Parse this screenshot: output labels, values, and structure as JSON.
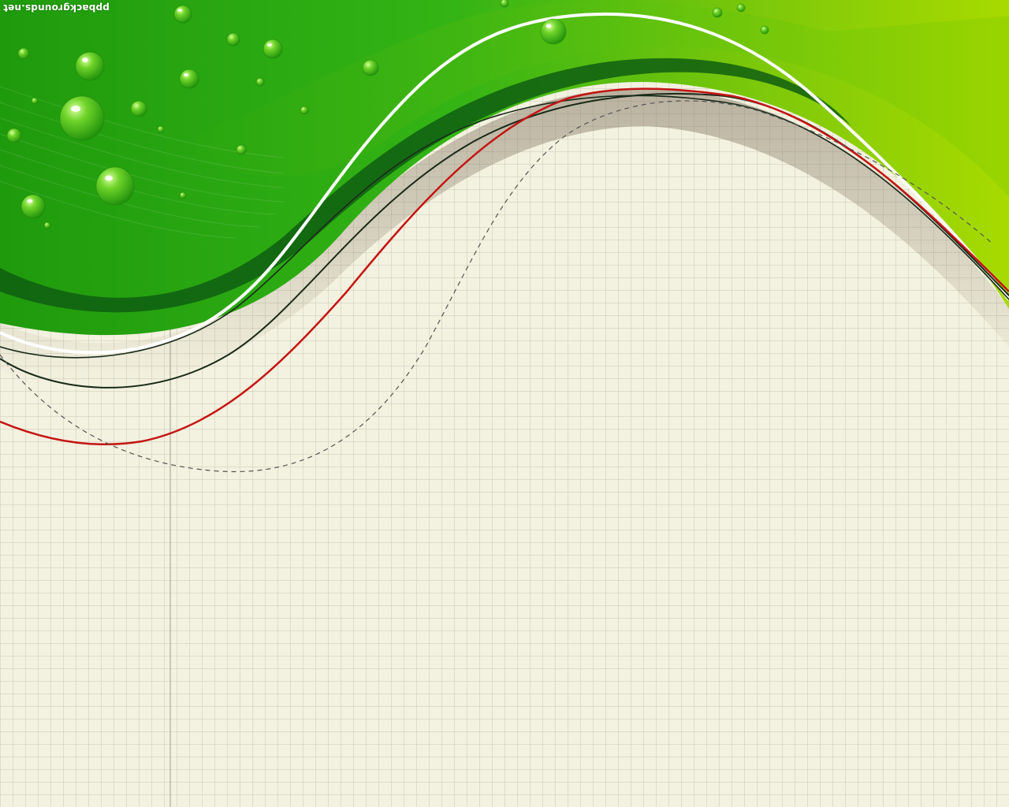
{
  "watermark": {
    "text": "ppbackgrounds.net",
    "orientation": "upside-down"
  },
  "colors": {
    "paper": "#f3f1df",
    "grid_line": "#c8c6b4",
    "margin_line": "#b9b7a6",
    "green_dark": "#1f9a0d",
    "green_mid": "#39b71a",
    "green_light": "#9fd600",
    "green_deep": "#0f5e12",
    "white_curve": "#ffffff",
    "red_curve": "#c41414",
    "black_curve": "#1a2a1a",
    "dashed_curve": "#555555"
  },
  "decorations": {
    "water_drops": "water-drop-icons",
    "background": "graph-paper-grid"
  }
}
